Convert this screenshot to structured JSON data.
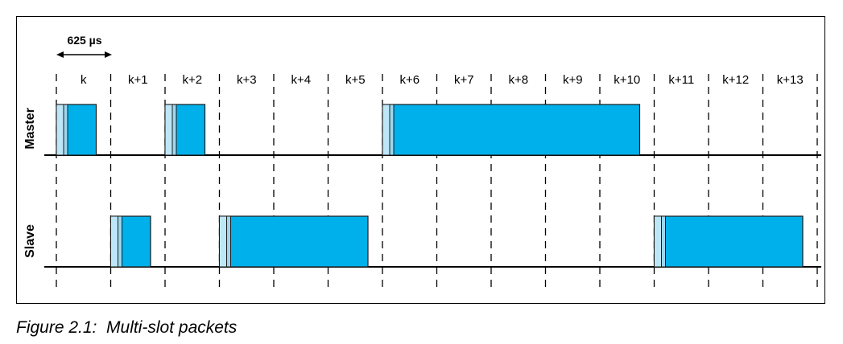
{
  "figure": {
    "caption": "Figure 2.1:  Multi-slot packets"
  },
  "diagram": {
    "slot_duration_label": "625 µs",
    "slot_labels": [
      "k",
      "k+1",
      "k+2",
      "k+3",
      "k+4",
      "k+5",
      "k+6",
      "k+7",
      "k+8",
      "k+9",
      "k+10",
      "k+11",
      "k+12",
      "k+13"
    ],
    "rows": [
      {
        "id": "master",
        "label": "Master",
        "packets": [
          {
            "start_slot": 0,
            "slots": 1
          },
          {
            "start_slot": 2,
            "slots": 1
          },
          {
            "start_slot": 6,
            "slots": 5
          }
        ]
      },
      {
        "id": "slave",
        "label": "Slave",
        "packets": [
          {
            "start_slot": 1,
            "slots": 1
          },
          {
            "start_slot": 3,
            "slots": 3
          },
          {
            "start_slot": 11,
            "slots": 3
          }
        ]
      }
    ],
    "colors": {
      "packet_body": "#00b0ea",
      "packet_header": "#bde6f7",
      "packet_header2": "#9fd6ee",
      "outline": "#1a1a1a",
      "line": "#000000"
    }
  }
}
